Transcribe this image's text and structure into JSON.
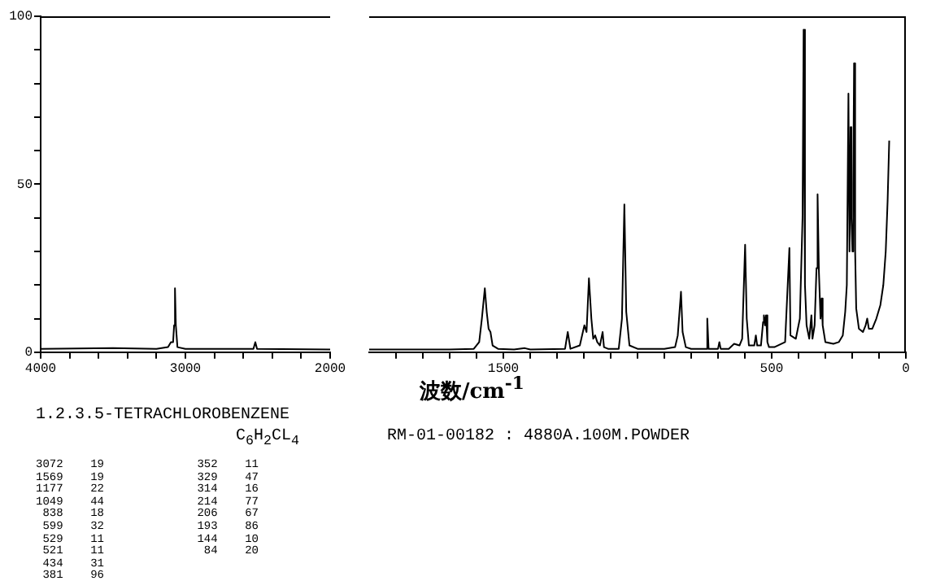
{
  "chart_data": [
    {
      "type": "line",
      "title": "1.2.3.5-TETRACHLOROBENZENE",
      "subtitle": "C$_{6}$H$_{2}$CL$_{4}$",
      "annotations": [
        "RM-01-00182 : 4880A.100M.POWDER",
        "3072    19",
        "1569    19",
        "1177    22",
        "1049    44",
        " 838    18",
        " 599    32",
        " 529    11",
        " 521    11",
        " 434    31",
        " 381    96",
        " 352    11",
        " 329    47",
        " 314    16",
        " 214    77",
        " 206    67",
        " 193    86",
        " 144    10",
        "  84    20"
      ],
      "xlim": [
        4000,
        2000
      ],
      "xticks": [
        4000,
        {
          "value": 3800,
          "label": null
        },
        {
          "value": 3600,
          "label": null
        },
        {
          "value": 3400,
          "label": null
        },
        {
          "value": 3200,
          "label": null
        },
        3000,
        {
          "value": 2800,
          "label": null
        },
        {
          "value": 2600,
          "label": null
        },
        {
          "value": 2400,
          "label": null
        },
        {
          "value": 2200,
          "label": null
        },
        2000
      ],
      "ylim": [
        0,
        100
      ],
      "yticks": [
        0,
        {
          "value": 10,
          "label": null
        },
        {
          "value": 20,
          "label": null
        },
        {
          "value": 30,
          "label": null
        },
        {
          "value": 40,
          "label": null
        },
        50,
        {
          "value": 60,
          "label": null
        },
        {
          "value": 70,
          "label": null
        },
        {
          "value": 80,
          "label": null
        },
        {
          "value": 90,
          "label": null
        },
        100
      ],
      "marker": "none",
      "line_style": "solid",
      "series": [
        {
          "color": "#000000",
          "x": [
            4000,
            3500,
            3200,
            3120,
            3100,
            3085,
            3078,
            3072,
            3066,
            3055,
            3000,
            2600,
            2530,
            2517,
            2505,
            2000
          ],
          "values": [
            1,
            1.2,
            1,
            1.5,
            3,
            3,
            8,
            19,
            8,
            1.5,
            1,
            1,
            1,
            3,
            1,
            0.8
          ]
        }
      ]
    },
    {
      "type": "line",
      "xlabel": "波数/cm$^{-1}$",
      "tick_labels": "x",
      "xlim": [
        2000,
        0
      ],
      "xticks": [
        {
          "value": 1900,
          "label": null
        },
        {
          "value": 1800,
          "label": null
        },
        {
          "value": 1700,
          "label": null
        },
        {
          "value": 1600,
          "label": null
        },
        1500,
        {
          "value": 1400,
          "label": null
        },
        {
          "value": 1300,
          "label": null
        },
        {
          "value": 1200,
          "label": null
        },
        {
          "value": 1100,
          "label": null
        },
        {
          "value": 1000,
          "label": null
        },
        {
          "value": 900,
          "label": null
        },
        {
          "value": 800,
          "label": null
        },
        {
          "value": 700,
          "label": null
        },
        {
          "value": 600,
          "label": null
        },
        500,
        {
          "value": 400,
          "label": null
        },
        {
          "value": 300,
          "label": null
        },
        {
          "value": 200,
          "label": null
        },
        {
          "value": 100,
          "label": null
        },
        0
      ],
      "ylim": [
        0,
        100
      ],
      "marker": "none",
      "line_style": "solid",
      "series": [
        {
          "color": "#000000",
          "x": [
            2000,
            1700,
            1610,
            1590,
            1580,
            1569,
            1562,
            1555,
            1548,
            1540,
            1520,
            1460,
            1420,
            1400,
            1270,
            1260,
            1250,
            1215,
            1198,
            1190,
            1181,
            1172,
            1165,
            1158,
            1150,
            1140,
            1130,
            1125,
            1110,
            1070,
            1058,
            1049,
            1042,
            1030,
            1000,
            900,
            860,
            850,
            838,
            832,
            820,
            800,
            745,
            740,
            735,
            700,
            695,
            690,
            660,
            640,
            620,
            610,
            599,
            593,
            585,
            565,
            559,
            554,
            540,
            532,
            529,
            525,
            521,
            516,
            510,
            490,
            450,
            434,
            430,
            410,
            395,
            385,
            381,
            376,
            370,
            360,
            352,
            348,
            340,
            333,
            329,
            324,
            318,
            314,
            310,
            300,
            270,
            250,
            235,
            226,
            220,
            214,
            210,
            206,
            203,
            199,
            196,
            193,
            189,
            185,
            175,
            160,
            150,
            144,
            138,
            125,
            110,
            95,
            84,
            75,
            68,
            62
          ],
          "values": [
            0.8,
            0.8,
            1,
            3,
            10,
            19,
            12,
            7,
            6,
            2,
            1,
            0.8,
            1.2,
            0.8,
            1,
            6,
            1,
            2,
            8,
            6,
            22,
            10,
            4,
            5,
            3,
            2,
            6,
            1.5,
            1,
            1,
            10,
            44,
            12,
            2,
            1,
            1,
            1.5,
            5,
            18,
            6,
            1.5,
            1,
            1,
            10,
            1,
            1,
            3,
            1,
            1,
            2.5,
            2,
            4,
            32,
            10,
            2,
            2,
            5,
            2,
            2,
            9,
            11,
            8,
            11,
            3,
            1.5,
            1.5,
            3,
            31,
            5,
            4,
            10,
            40,
            96,
            20,
            8,
            4,
            11,
            4,
            8,
            25,
            47,
            24,
            10,
            16,
            8,
            3,
            2.5,
            3,
            5,
            12,
            20,
            77,
            30,
            67,
            40,
            30,
            50,
            86,
            30,
            13,
            7,
            6,
            8,
            10,
            7,
            7,
            10,
            14,
            20,
            30,
            45,
            63
          ]
        }
      ]
    }
  ]
}
